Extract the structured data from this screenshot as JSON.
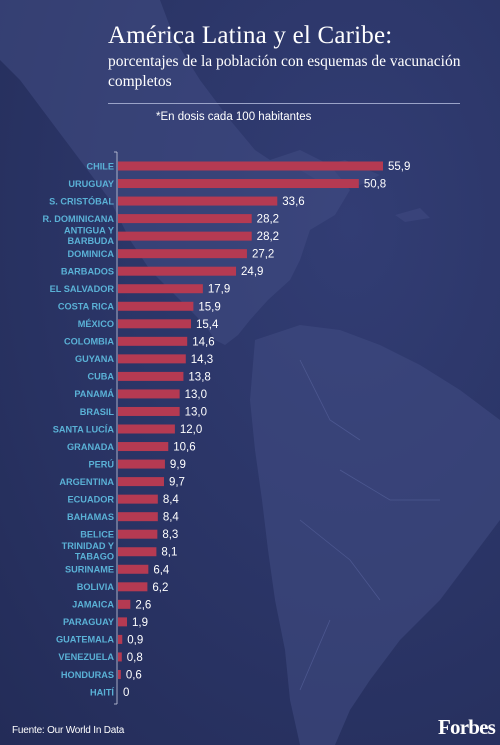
{
  "header": {
    "title": "América Latina y el Caribe:",
    "subtitle": "porcentajes de la población con esquemas de vacunación completos",
    "note": "*En dosis cada 100 habitantes"
  },
  "footer": {
    "source": "Fuente: Our World In Data",
    "logo": "Forbes"
  },
  "colors": {
    "background": "#2b3566",
    "bar": "#b53a52",
    "category_label": "#5ab1d6",
    "value_label": "#ffffff"
  },
  "chart_data": {
    "type": "bar",
    "orientation": "horizontal",
    "categories": [
      "CHILE",
      "URUGUAY",
      "S. CRISTÓBAL",
      "R. DOMINICANA",
      "ANTIGUA Y BARBUDA",
      "DOMINICA",
      "BARBADOS",
      "EL SALVADOR",
      "COSTA RICA",
      "MÉXICO",
      "COLOMBIA",
      "GUYANA",
      "CUBA",
      "PANAMÁ",
      "BRASIL",
      "SANTA LUCÍA",
      "GRANADA",
      "PERÚ",
      "ARGENTINA",
      "ECUADOR",
      "BAHAMAS",
      "BELICE",
      "TRINIDAD Y TABAGO",
      "SURINAME",
      "BOLIVIA",
      "JAMAICA",
      "PARAGUAY",
      "GUATEMALA",
      "VENEZUELA",
      "HONDURAS",
      "HAITÍ"
    ],
    "values": [
      55.9,
      50.8,
      33.6,
      28.2,
      28.2,
      27.2,
      24.9,
      17.9,
      15.9,
      15.4,
      14.6,
      14.3,
      13.8,
      13.0,
      13.0,
      12.0,
      10.6,
      9.9,
      9.7,
      8.4,
      8.4,
      8.3,
      8.1,
      6.4,
      6.2,
      2.6,
      1.9,
      0.9,
      0.8,
      0.6,
      0
    ],
    "value_labels": [
      "55,9",
      "50,8",
      "33,6",
      "28,2",
      "28,2",
      "27,2",
      "24,9",
      "17,9",
      "15,9",
      "15,4",
      "14,6",
      "14,3",
      "13,8",
      "13,0",
      "13,0",
      "12,0",
      "10,6",
      "9,9",
      "9,7",
      "8,4",
      "8,4",
      "8,3",
      "8,1",
      "6,4",
      "6,2",
      "2,6",
      "1,9",
      "0,9",
      "0,8",
      "0,6",
      "0"
    ],
    "title": "América Latina y el Caribe:",
    "subtitle": "porcentajes de la población con esquemas de vacunación completos",
    "xlim": [
      0,
      55.9
    ],
    "grid": false,
    "legend": "none"
  }
}
